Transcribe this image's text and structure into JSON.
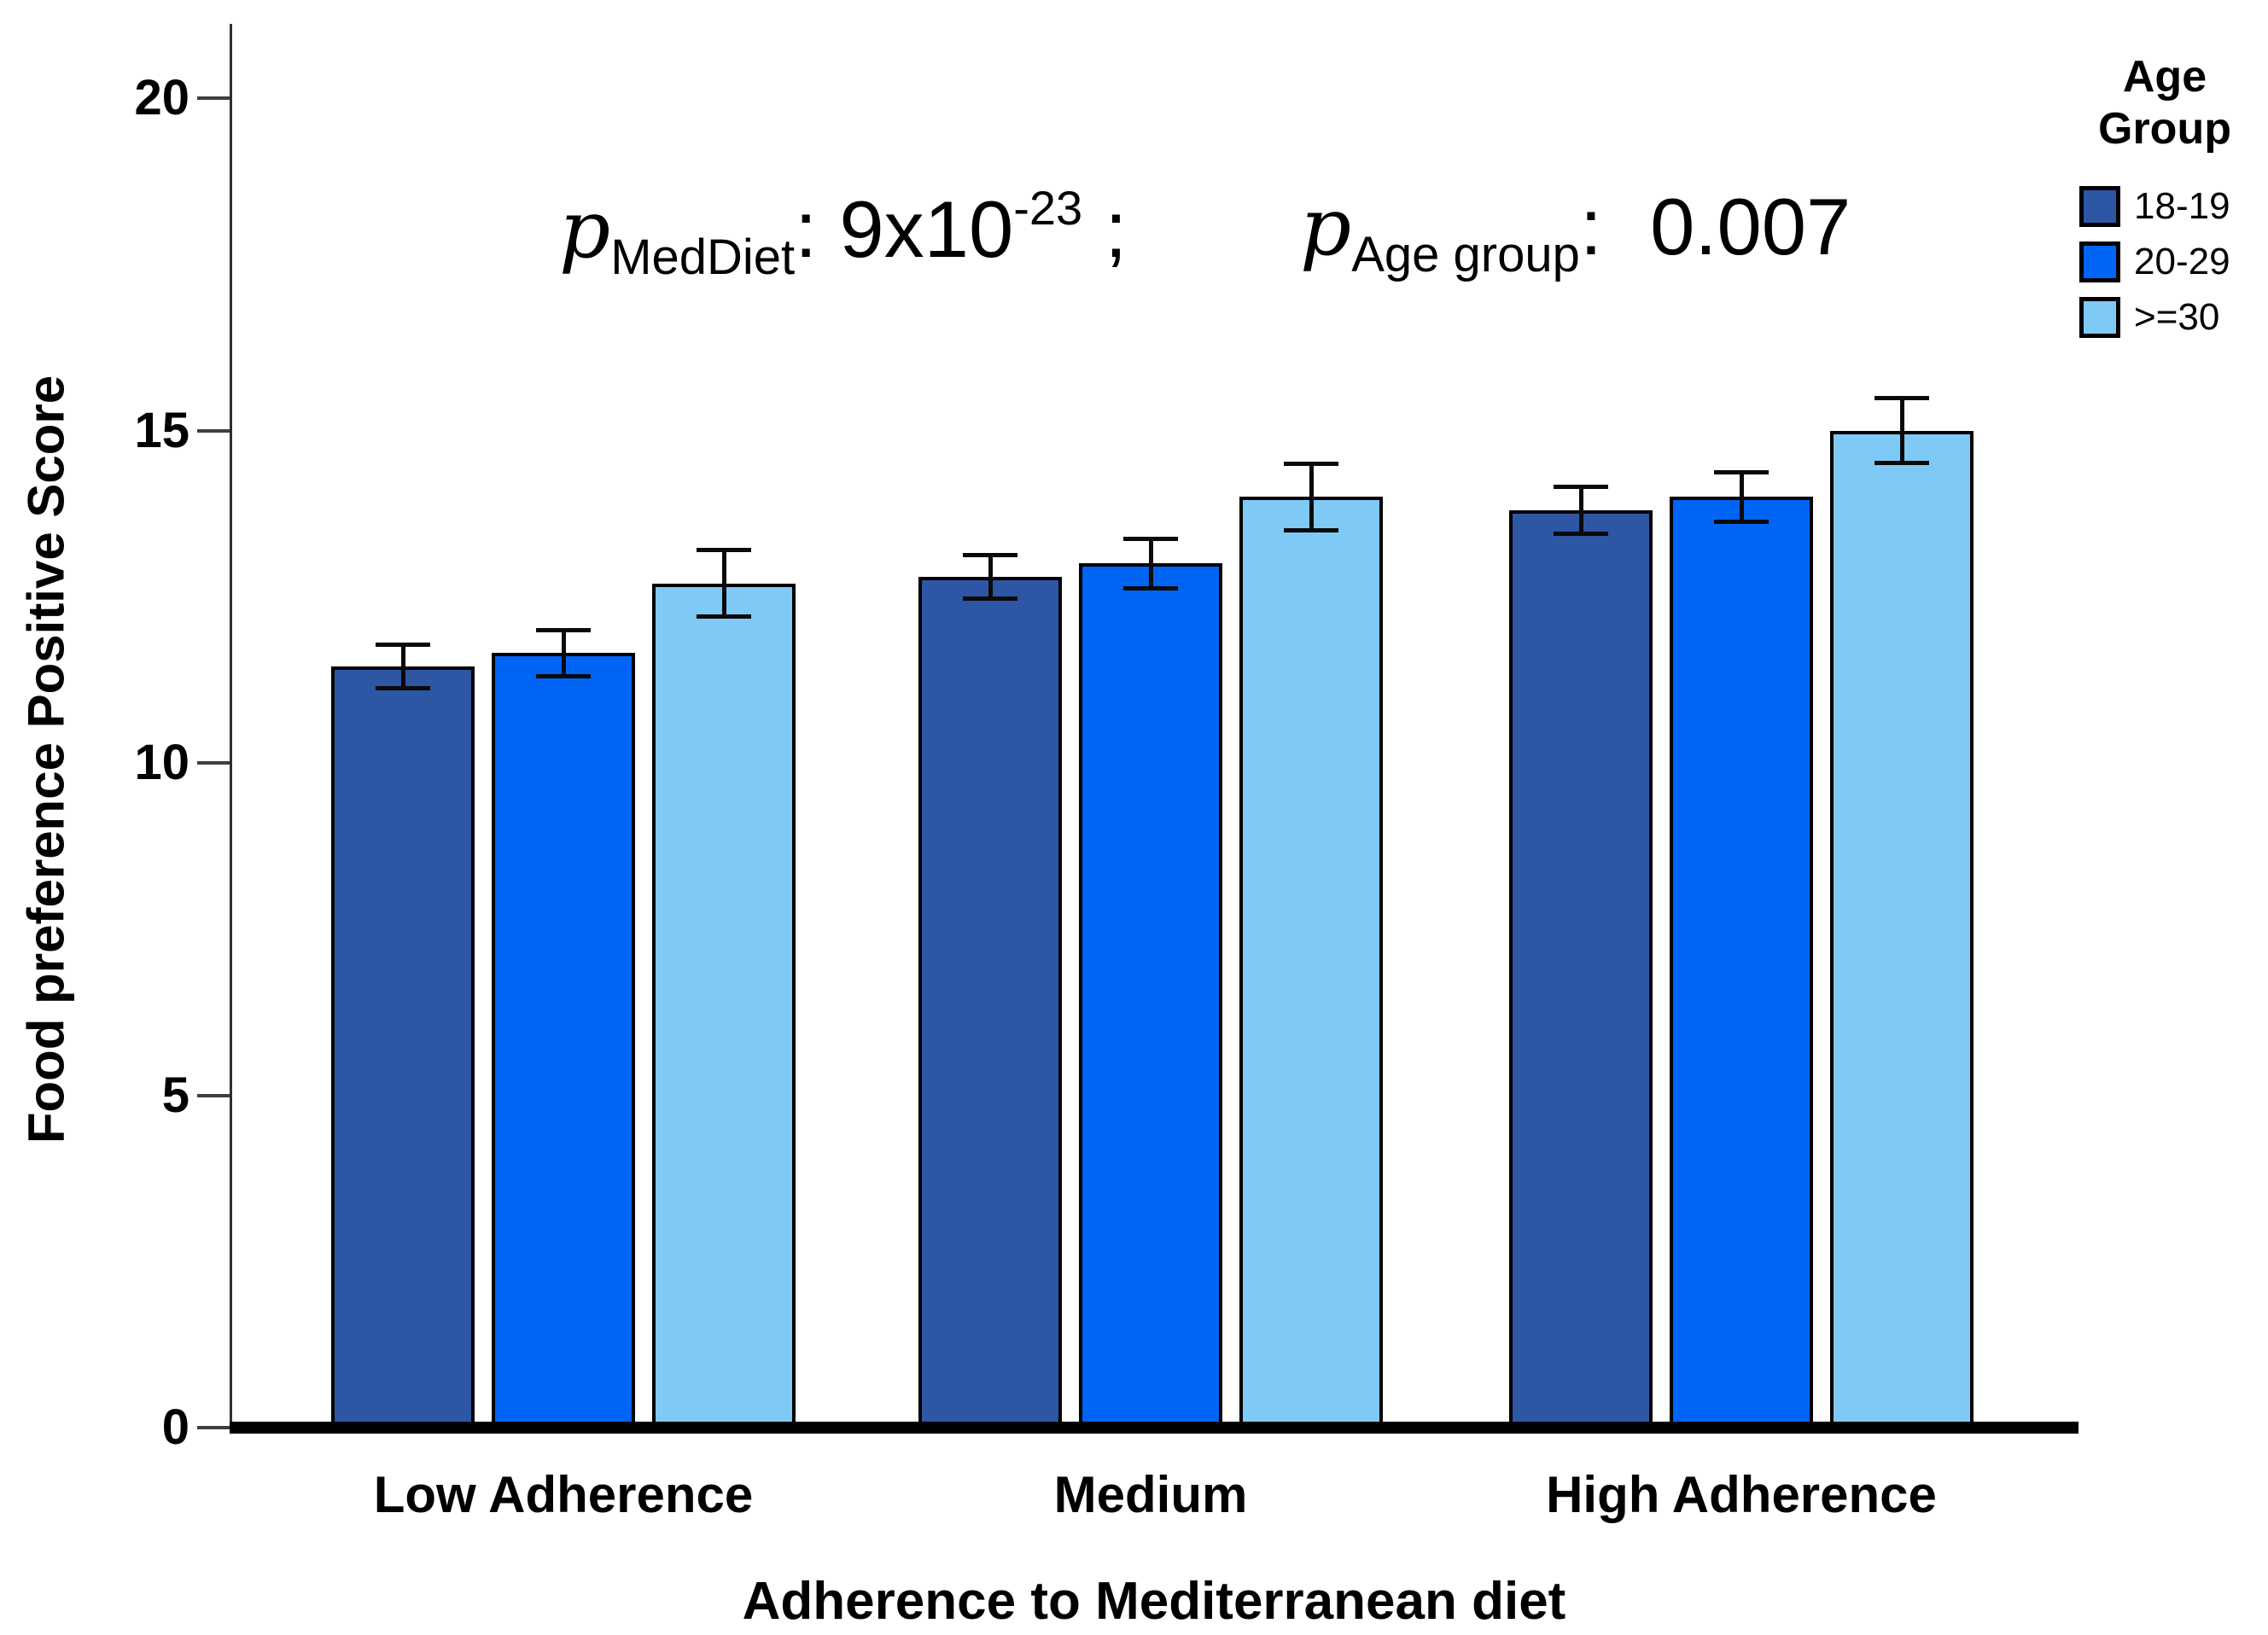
{
  "figure": {
    "annotation": {
      "term1": {
        "p": "p",
        "sub": "MedDiet",
        "colon": ": ",
        "value": "9x10",
        "exponent": "-23",
        "tail": " ;"
      },
      "term2": {
        "p": "p",
        "sub": "Age group",
        "colon": ": ",
        "value": "0.007"
      }
    }
  },
  "chart_data": {
    "type": "bar",
    "title": "",
    "xlabel": "Adherence to Mediterranean diet",
    "ylabel": "Food preference Positive Score",
    "categories": [
      "Low Adherence",
      "Medium",
      "High Adherence"
    ],
    "series": [
      {
        "name": "18-19",
        "color": "#2d56a5",
        "values": [
          11.45,
          12.8,
          13.8
        ],
        "errors": [
          0.33,
          0.33,
          0.35
        ]
      },
      {
        "name": "20-29",
        "color": "#0064f5",
        "values": [
          11.65,
          13.0,
          14.0
        ],
        "errors": [
          0.35,
          0.37,
          0.37
        ]
      },
      {
        "name": ">=30",
        "color": "#7fc9f7",
        "values": [
          12.7,
          14.0,
          15.0
        ],
        "errors": [
          0.5,
          0.5,
          0.49
        ]
      }
    ],
    "ylim": [
      0,
      21
    ],
    "yticks": [
      0,
      5,
      10,
      15,
      20
    ],
    "grid": false,
    "error_bars": true,
    "legend": {
      "title_lines": [
        "Age",
        "Group"
      ],
      "position": "top-right"
    },
    "colors": {
      "axis": "#2f2f2f",
      "baseline": "#000000",
      "error_bar": "#0a0a0a",
      "text": "#000000"
    }
  }
}
